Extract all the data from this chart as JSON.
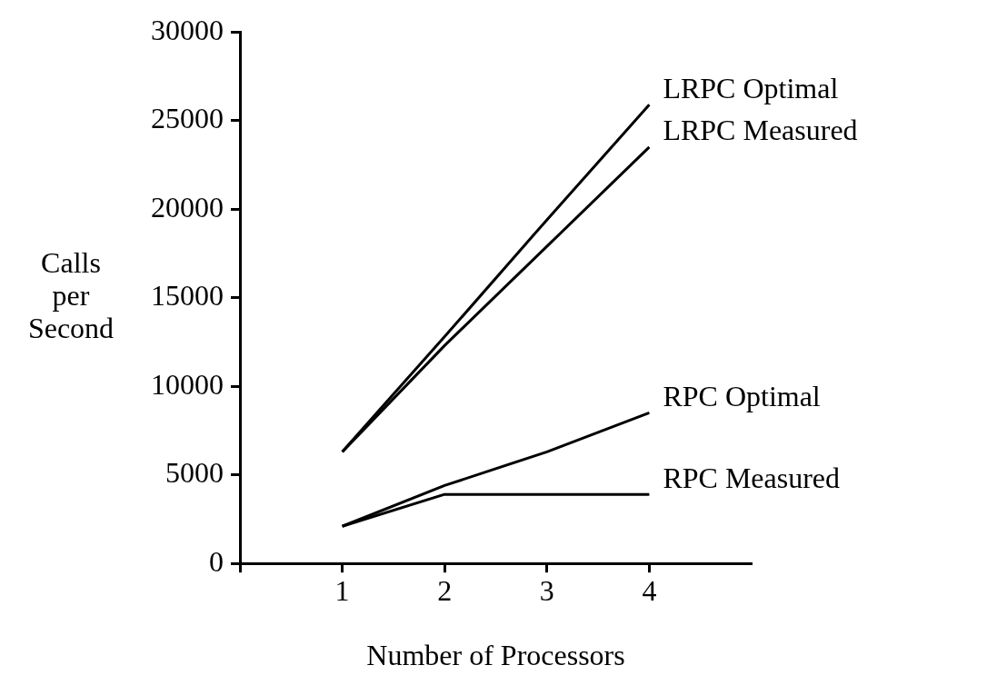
{
  "chart_data": {
    "type": "line",
    "xlabel": "Number of Processors",
    "ylabel": "Calls per Second",
    "xlim": [
      0,
      5
    ],
    "xticks": [
      {
        "value": 0,
        "label": null
      },
      1,
      2,
      3,
      4
    ],
    "ylim": [
      0,
      30000
    ],
    "yticks": [
      0,
      5000,
      10000,
      15000,
      20000,
      25000,
      30000
    ],
    "grid": false,
    "legend": false,
    "marker": "none",
    "line_style": "solid",
    "series": [
      {
        "name": "LRPC Optimal",
        "color": "#000000",
        "x": [
          1,
          2,
          3,
          4
        ],
        "values": [
          6300,
          12800,
          19400,
          25900
        ]
      },
      {
        "name": "LRPC Measured",
        "color": "#000000",
        "x": [
          1,
          2,
          3,
          4
        ],
        "values": [
          6300,
          12300,
          17900,
          23500
        ]
      },
      {
        "name": "RPC Optimal",
        "color": "#000000",
        "x": [
          1,
          2,
          3,
          4
        ],
        "values": [
          2100,
          4400,
          6300,
          8500
        ]
      },
      {
        "name": "RPC Measured",
        "color": "#000000",
        "x": [
          1,
          2,
          3,
          4
        ],
        "values": [
          2100,
          3900,
          3900,
          3900
        ]
      }
    ]
  }
}
